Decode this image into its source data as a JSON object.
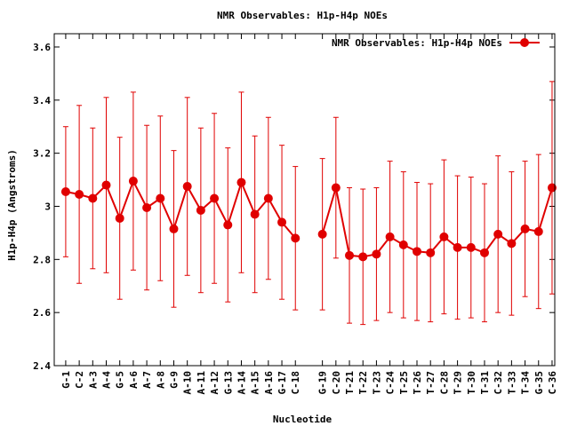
{
  "chart_data": {
    "type": "line",
    "title": "NMR Observables: H1p-H4p NOEs",
    "xlabel": "Nucleotide",
    "ylabel": "H1p-H4p (Angstroms)",
    "ylim": [
      2.4,
      3.65
    ],
    "yticks": [
      "2.4",
      "2.6",
      "2.8",
      "3",
      "3.2",
      "3.4",
      "3.6"
    ],
    "ytick_values": [
      2.4,
      2.6,
      2.8,
      3.0,
      3.2,
      3.4,
      3.6
    ],
    "legend": {
      "placement": "top-right",
      "label": "NMR Observables: H1p-H4p NOEs"
    },
    "grid": false,
    "color": "#e00000",
    "series": [
      {
        "name": "NMR Observables: H1p-H4p NOEs",
        "points": [
          {
            "label": "G-1",
            "pos": 1,
            "y": 3.055,
            "err": 0.245
          },
          {
            "label": "C-2",
            "pos": 2,
            "y": 3.045,
            "err": 0.335
          },
          {
            "label": "A-3",
            "pos": 3,
            "y": 3.03,
            "err": 0.265
          },
          {
            "label": "A-4",
            "pos": 4,
            "y": 3.08,
            "err": 0.33
          },
          {
            "label": "G-5",
            "pos": 5,
            "y": 2.955,
            "err": 0.305
          },
          {
            "label": "A-6",
            "pos": 6,
            "y": 3.095,
            "err": 0.335
          },
          {
            "label": "A-7",
            "pos": 7,
            "y": 2.995,
            "err": 0.31
          },
          {
            "label": "A-8",
            "pos": 8,
            "y": 3.03,
            "err": 0.31
          },
          {
            "label": "G-9",
            "pos": 9,
            "y": 2.915,
            "err": 0.295
          },
          {
            "label": "A-10",
            "pos": 10,
            "y": 3.075,
            "err": 0.335
          },
          {
            "label": "A-11",
            "pos": 11,
            "y": 2.985,
            "err": 0.31
          },
          {
            "label": "A-12",
            "pos": 12,
            "y": 3.03,
            "err": 0.32
          },
          {
            "label": "G-13",
            "pos": 13,
            "y": 2.93,
            "err": 0.29
          },
          {
            "label": "A-14",
            "pos": 14,
            "y": 3.09,
            "err": 0.34
          },
          {
            "label": "A-15",
            "pos": 15,
            "y": 2.97,
            "err": 0.295
          },
          {
            "label": "A-16",
            "pos": 16,
            "y": 3.03,
            "err": 0.305
          },
          {
            "label": "G-17",
            "pos": 17,
            "y": 2.94,
            "err": 0.29
          },
          {
            "label": "C-18",
            "pos": 18,
            "y": 2.88,
            "err": 0.27
          },
          {
            "label": "G-19",
            "pos": 20,
            "y": 2.895,
            "err": 0.285
          },
          {
            "label": "C-20",
            "pos": 21,
            "y": 3.07,
            "err": 0.265
          },
          {
            "label": "T-21",
            "pos": 22,
            "y": 2.815,
            "err": 0.255
          },
          {
            "label": "T-22",
            "pos": 23,
            "y": 2.81,
            "err": 0.255
          },
          {
            "label": "T-23",
            "pos": 24,
            "y": 2.82,
            "err": 0.25
          },
          {
            "label": "C-24",
            "pos": 25,
            "y": 2.885,
            "err": 0.285
          },
          {
            "label": "T-25",
            "pos": 26,
            "y": 2.855,
            "err": 0.275
          },
          {
            "label": "T-26",
            "pos": 27,
            "y": 2.83,
            "err": 0.26
          },
          {
            "label": "T-27",
            "pos": 28,
            "y": 2.825,
            "err": 0.26
          },
          {
            "label": "C-28",
            "pos": 29,
            "y": 2.885,
            "err": 0.29
          },
          {
            "label": "T-29",
            "pos": 30,
            "y": 2.845,
            "err": 0.27
          },
          {
            "label": "T-30",
            "pos": 31,
            "y": 2.845,
            "err": 0.265
          },
          {
            "label": "T-31",
            "pos": 32,
            "y": 2.825,
            "err": 0.26
          },
          {
            "label": "C-32",
            "pos": 33,
            "y": 2.895,
            "err": 0.295
          },
          {
            "label": "T-33",
            "pos": 34,
            "y": 2.86,
            "err": 0.27
          },
          {
            "label": "T-34",
            "pos": 35,
            "y": 2.915,
            "err": 0.255
          },
          {
            "label": "G-35",
            "pos": 36,
            "y": 2.905,
            "err": 0.29
          },
          {
            "label": "C-36",
            "pos": 37,
            "y": 3.07,
            "err": 0.4
          }
        ]
      }
    ]
  }
}
